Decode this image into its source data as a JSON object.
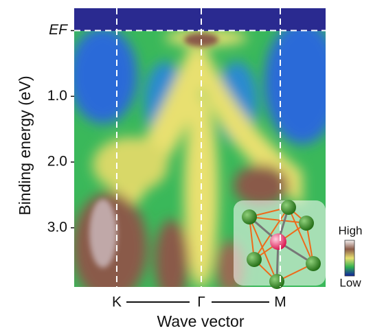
{
  "chart_data": {
    "type": "heatmap",
    "x_label": "Wave vector",
    "y_label": "Binding energy (eV)",
    "categories": [
      "K",
      "Γ",
      "M"
    ],
    "ylim": [
      -0.34,
      3.9
    ],
    "yticks": [
      {
        "value": 0,
        "label": "EF"
      },
      {
        "value": 1,
        "label": "1.0"
      },
      {
        "value": 2,
        "label": "2.0"
      },
      {
        "value": 3,
        "label": "3.0"
      }
    ],
    "colorbar": {
      "high": "High",
      "low": "Low"
    }
  }
}
